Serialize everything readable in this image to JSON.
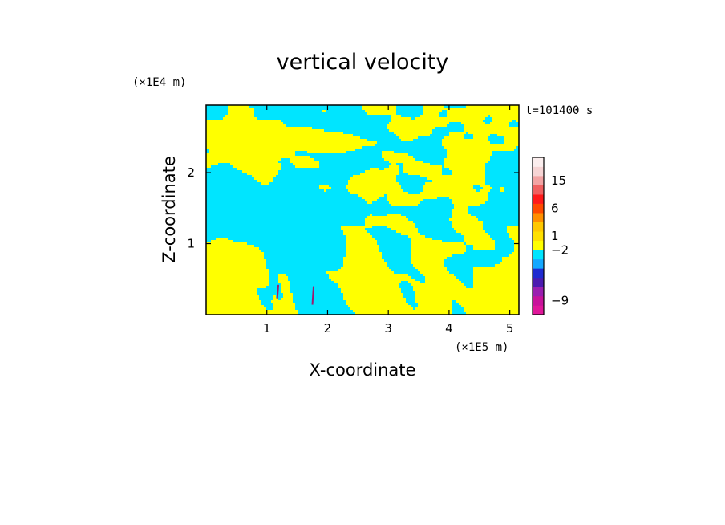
{
  "chart_data": {
    "type": "heatmap",
    "title": "vertical velocity",
    "xlabel": "X-coordinate",
    "ylabel": "Z-coordinate",
    "x_unit": "(×1E5 m)",
    "y_unit": "(×1E4 m)",
    "time_label": "t=101400 s",
    "xlim": [
      0,
      5.15
    ],
    "ylim": [
      0,
      2.95
    ],
    "x_ticks": [
      1,
      2,
      3,
      4,
      5
    ],
    "y_ticks": [
      1,
      2
    ],
    "x_tick_labels": [
      "1",
      "2",
      "3",
      "4",
      "5"
    ],
    "y_tick_labels": [
      "1",
      "2"
    ],
    "field_colors": {
      "positive": "#ffff00",
      "negative": "#00e5ff",
      "strong_negative": "#a01a6e"
    },
    "colorbar": {
      "levels": [
        {
          "color": "#e0179a"
        },
        {
          "color": "#c8139b"
        },
        {
          "color": "#9a1fb0"
        },
        {
          "color": "#4b1bb0"
        },
        {
          "color": "#1f2bd0"
        },
        {
          "color": "#14a8ff"
        },
        {
          "color": "#00e5ff"
        },
        {
          "color": "#ffff00"
        },
        {
          "color": "#ffe000"
        },
        {
          "color": "#ffc800"
        },
        {
          "color": "#ff8f00"
        },
        {
          "color": "#ff4a00"
        },
        {
          "color": "#ff1a1a"
        },
        {
          "color": "#f06060"
        },
        {
          "color": "#f2a3a3"
        },
        {
          "color": "#f6d4d4"
        },
        {
          "color": "#fbeeee"
        }
      ],
      "tick_labels": [
        {
          "text": "15",
          "level": 14
        },
        {
          "text": "6",
          "level": 11
        },
        {
          "text": "1",
          "level": 8
        },
        {
          "text": "−2",
          "level": 6.5
        },
        {
          "text": "−9",
          "level": 1
        }
      ]
    }
  }
}
